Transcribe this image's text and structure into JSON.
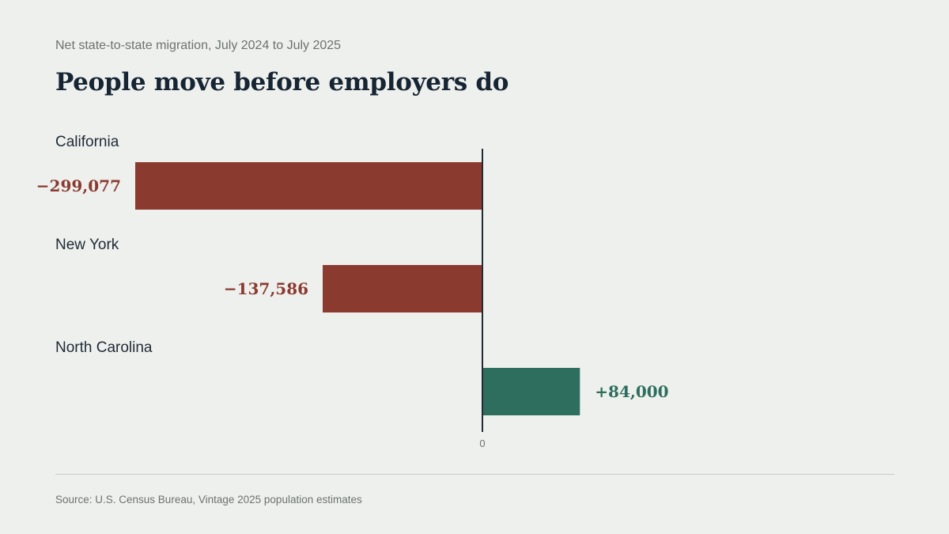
{
  "subtitle": "Net state-to-state migration, July 2024 to July 2025",
  "title": "People move before employers do",
  "source": "Source: U.S. Census Bureau, Vintage 2025 population estimates",
  "colors": {
    "negative": "#8b3a30",
    "positive": "#2e6e5e",
    "axis": "#1f2a36"
  },
  "chart_data": {
    "type": "bar",
    "orientation": "horizontal",
    "categories": [
      "California",
      "New York",
      "North Carolina"
    ],
    "values": [
      -299077,
      -137586,
      84000
    ],
    "value_labels": [
      "−299,077",
      "−137,586",
      "+84,000"
    ],
    "xticks": [
      "0"
    ],
    "title": "People move before employers do",
    "xlabel": "",
    "ylabel": ""
  }
}
